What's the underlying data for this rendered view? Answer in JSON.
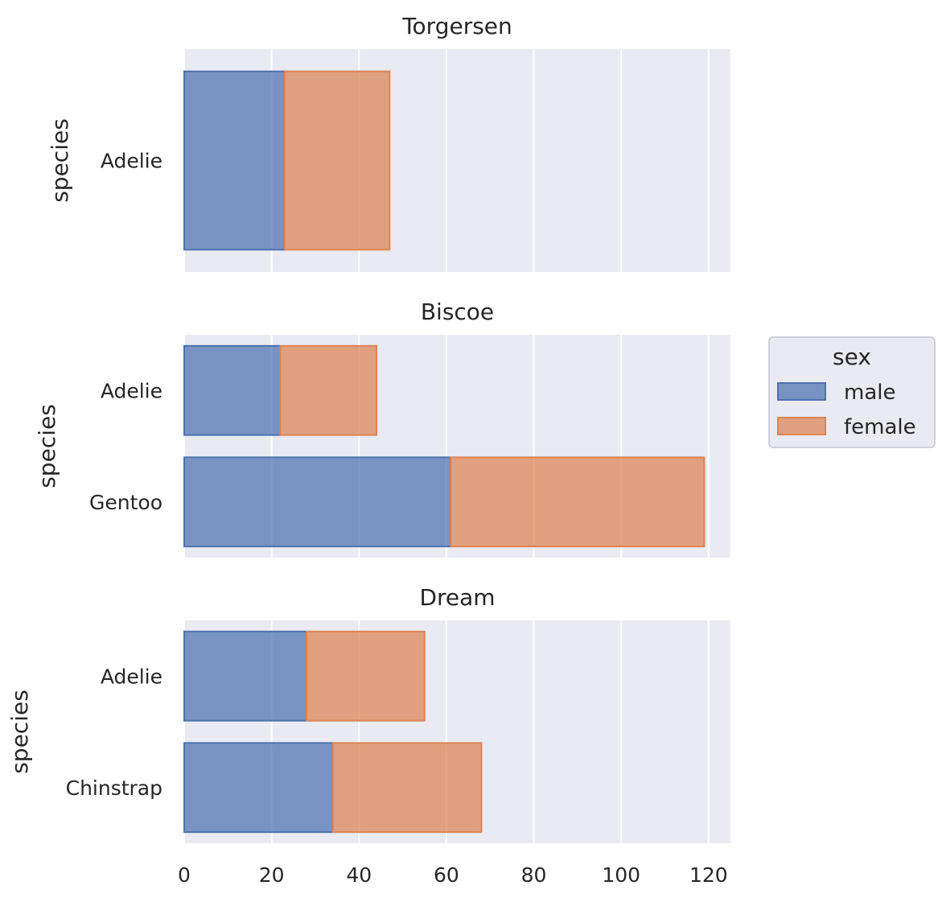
{
  "chart_data": {
    "type": "bar",
    "orientation": "horizontal",
    "stacked": true,
    "facet_by": "island",
    "xlim": [
      0,
      125
    ],
    "xticks": [
      0,
      20,
      40,
      60,
      80,
      100,
      120
    ],
    "ylabel": "species",
    "grid": true,
    "legend": {
      "title": "sex",
      "placement": "right",
      "entries": [
        {
          "name": "male",
          "color": "#4c72b0"
        },
        {
          "name": "female",
          "color": "#dd8452"
        }
      ]
    },
    "panels": [
      {
        "title": "Torgersen",
        "categories": [
          "Adelie"
        ],
        "series": [
          {
            "name": "male",
            "values": [
              23
            ]
          },
          {
            "name": "female",
            "values": [
              24
            ]
          }
        ]
      },
      {
        "title": "Biscoe",
        "categories": [
          "Adelie",
          "Gentoo"
        ],
        "series": [
          {
            "name": "male",
            "values": [
              22,
              61
            ]
          },
          {
            "name": "female",
            "values": [
              22,
              58
            ]
          }
        ]
      },
      {
        "title": "Dream",
        "categories": [
          "Adelie",
          "Chinstrap"
        ],
        "series": [
          {
            "name": "male",
            "values": [
              28,
              34
            ]
          },
          {
            "name": "female",
            "values": [
              27,
              34
            ]
          }
        ]
      }
    ]
  }
}
